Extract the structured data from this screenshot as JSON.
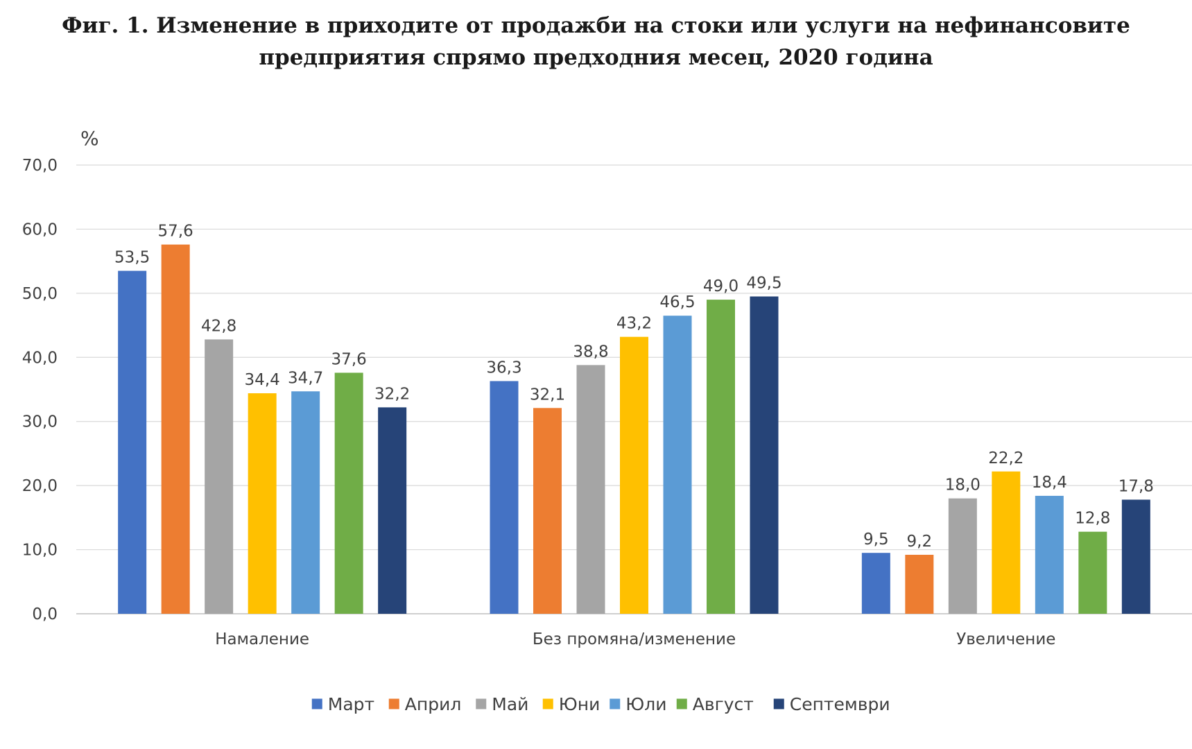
{
  "chart_data": {
    "type": "bar",
    "title_lines": [
      "Фиг. 1. Изменение в приходите от продажби на стоки или услуги на нефинансовите",
      "предприятия спрямо предходния месец, 2020 година"
    ],
    "ylabel": "%",
    "ylim": [
      0,
      70
    ],
    "yticks": [
      "0,0",
      "10,0",
      "20,0",
      "30,0",
      "40,0",
      "50,0",
      "60,0",
      "70,0"
    ],
    "grid": true,
    "legend_position": "bottom",
    "categories": [
      "Намаление",
      "Без промяна/изменение",
      "Увеличение"
    ],
    "series": [
      {
        "name": "Март",
        "color": "#4472C4",
        "values": [
          53.5,
          36.3,
          9.5
        ],
        "labels": [
          "53,5",
          "36,3",
          "9,5"
        ]
      },
      {
        "name": "Април",
        "color": "#ED7D31",
        "values": [
          57.6,
          32.1,
          9.2
        ],
        "labels": [
          "57,6",
          "32,1",
          "9,2"
        ]
      },
      {
        "name": "Май",
        "color": "#A5A5A5",
        "values": [
          42.8,
          38.8,
          18.0
        ],
        "labels": [
          "42,8",
          "38,8",
          "18,0"
        ]
      },
      {
        "name": "Юни",
        "color": "#FFC000",
        "values": [
          34.4,
          43.2,
          22.2
        ],
        "labels": [
          "34,4",
          "43,2",
          "22,2"
        ]
      },
      {
        "name": "Юли",
        "color": "#5B9BD5",
        "values": [
          34.7,
          46.5,
          18.4
        ],
        "labels": [
          "34,7",
          "46,5",
          "18,4"
        ]
      },
      {
        "name": "Август",
        "color": "#70AD47",
        "values": [
          37.6,
          49.0,
          12.8
        ],
        "labels": [
          "37,6",
          "49,0",
          "12,8"
        ]
      },
      {
        "name": "Септември",
        "color": "#264478",
        "values": [
          32.2,
          49.5,
          17.8
        ],
        "labels": [
          "32,2",
          "49,5",
          "17,8"
        ]
      }
    ]
  }
}
